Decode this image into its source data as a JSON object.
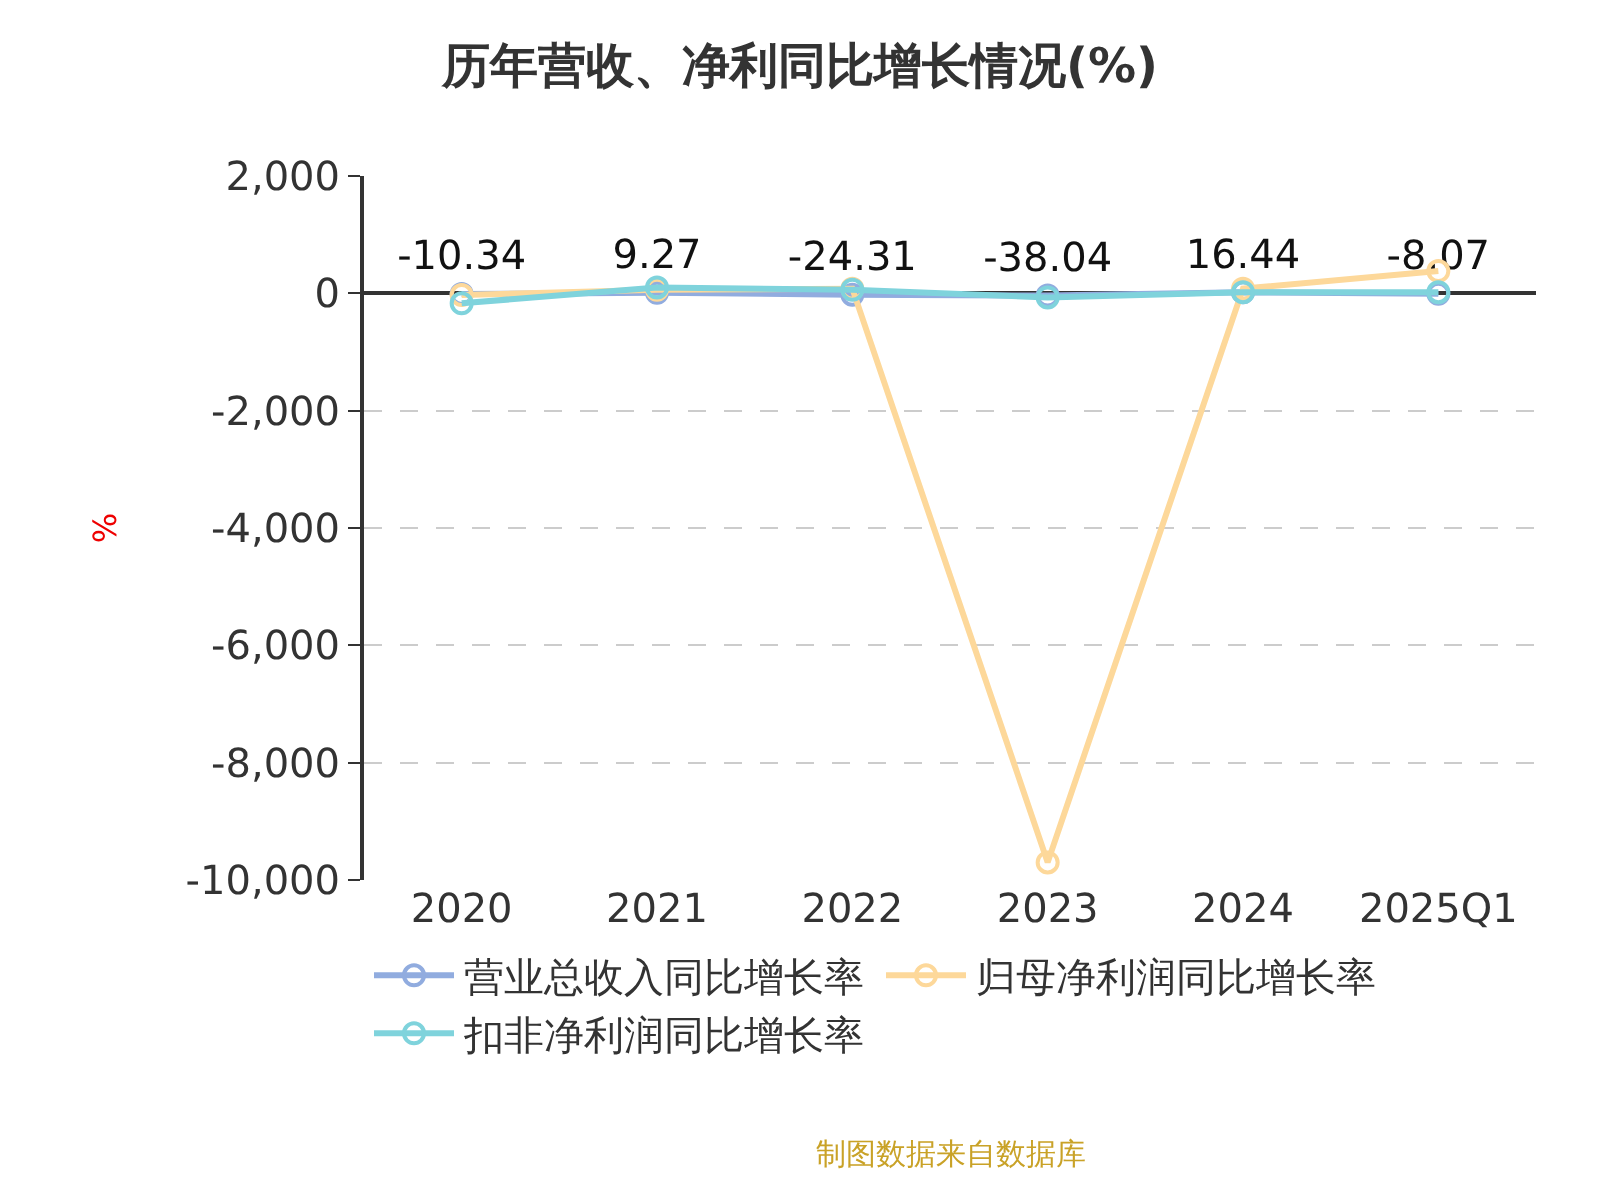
{
  "chart_data": {
    "type": "line",
    "title": "历年营收、净利同比增长情况(%)",
    "ylabel": "%",
    "categories": [
      "2020",
      "2021",
      "2022",
      "2023",
      "2024",
      "2025Q1"
    ],
    "series": [
      {
        "name": "营业总收入同比增长率",
        "color": "#91acdf",
        "values": [
          -10.34,
          9.27,
          -24.31,
          -38.04,
          16.44,
          -8.07
        ],
        "value_labels": [
          "-10.34",
          "9.27",
          "-24.31",
          "-38.04",
          "16.44",
          "-8.07"
        ]
      },
      {
        "name": "归母净利润同比增长率",
        "color": "#fdd89a",
        "values": [
          -30,
          60,
          80,
          -9700,
          80,
          380
        ]
      },
      {
        "name": "扣非净利润同比增长率",
        "color": "#7fd3dc",
        "values": [
          -170,
          100,
          60,
          -70,
          20,
          20
        ]
      }
    ],
    "ylim": [
      -10000,
      2000
    ],
    "yticks": [
      {
        "value": -10000,
        "label": "-10,000"
      },
      {
        "value": -8000,
        "label": "-8,000"
      },
      {
        "value": -6000,
        "label": "-6,000"
      },
      {
        "value": -4000,
        "label": "-4,000"
      },
      {
        "value": -2000,
        "label": "-2,000"
      },
      0,
      {
        "value": 2000,
        "label": "2,000"
      }
    ],
    "grid": "y",
    "legend": "bottom",
    "marker": "circle",
    "line_style": "solid",
    "annotations": [
      "制图数据来自数据库"
    ]
  }
}
